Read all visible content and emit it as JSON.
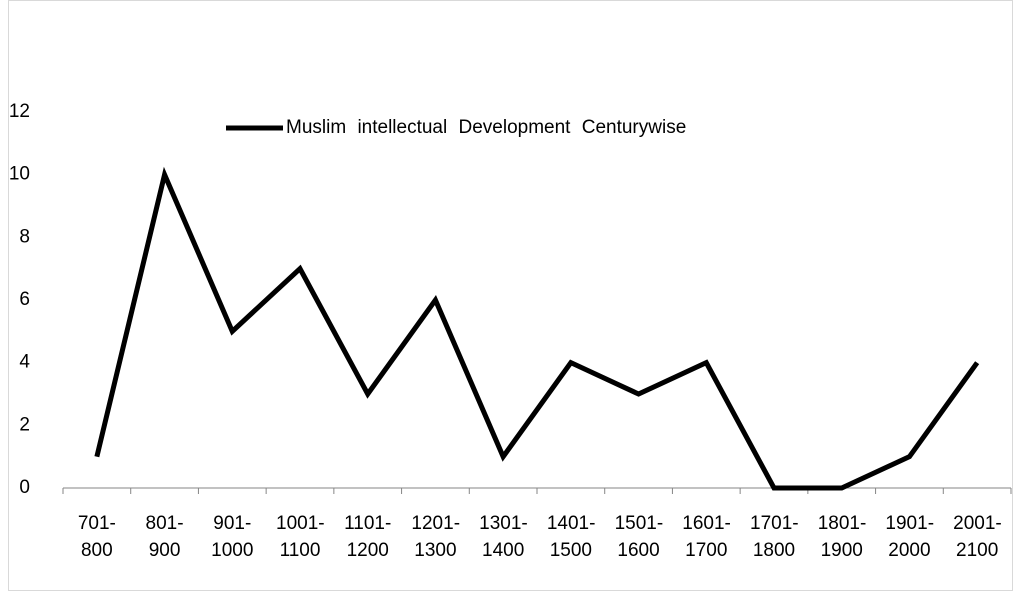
{
  "chart_data": {
    "type": "line",
    "categories": [
      "701-800",
      "801-900",
      "901-1000",
      "1001-1100",
      "1101-1200",
      "1201-1300",
      "1301-1400",
      "1401-1500",
      "1501-1600",
      "1601-1700",
      "1701-1800",
      "1801-1900",
      "1901-2000",
      "2001-2100"
    ],
    "series": [
      {
        "name": "Muslim intellectual Development Centurywise",
        "color": "#000000",
        "values": [
          1,
          10,
          5,
          7,
          3,
          6,
          1,
          4,
          3,
          4,
          0,
          0,
          1,
          4
        ]
      }
    ],
    "ylim": [
      0,
      12
    ],
    "yticks": [
      0,
      2,
      4,
      6,
      8,
      10,
      12
    ],
    "grid": false,
    "legend": "top"
  }
}
